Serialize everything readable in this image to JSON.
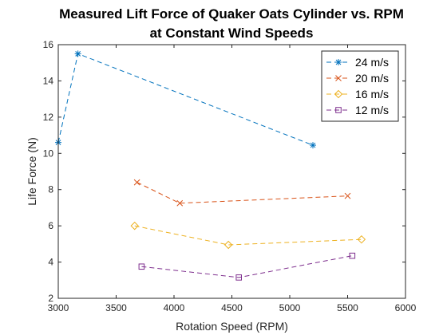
{
  "chart_data": {
    "type": "line",
    "title": [
      "Measured Lift Force of Quaker Oats Cylinder vs. RPM",
      "at Constant Wind Speeds"
    ],
    "xlabel": "Rotation Speed (RPM)",
    "ylabel": "Life Force (N)",
    "xlim": [
      3000,
      6000
    ],
    "ylim": [
      2,
      16
    ],
    "xticks": [
      3000,
      3500,
      4000,
      4500,
      5000,
      5500,
      6000
    ],
    "yticks": [
      2,
      4,
      6,
      8,
      10,
      12,
      14,
      16
    ],
    "grid": false,
    "legend_position": "top-right",
    "series": [
      {
        "name": "24 m/s",
        "color": "#0072BD",
        "marker": "asterisk",
        "x": [
          3000,
          3170,
          5200
        ],
        "y": [
          10.6,
          15.5,
          10.45
        ]
      },
      {
        "name": "20 m/s",
        "color": "#D95319",
        "marker": "x",
        "x": [
          3680,
          4050,
          5500
        ],
        "y": [
          8.4,
          7.25,
          7.65
        ]
      },
      {
        "name": "16 m/s",
        "color": "#EDB120",
        "marker": "diamond",
        "x": [
          3660,
          4470,
          5620
        ],
        "y": [
          6.0,
          4.95,
          5.25
        ]
      },
      {
        "name": "12 m/s",
        "color": "#7E2F8E",
        "marker": "square",
        "x": [
          3720,
          4560,
          5540
        ],
        "y": [
          3.75,
          3.15,
          4.35
        ]
      }
    ]
  }
}
